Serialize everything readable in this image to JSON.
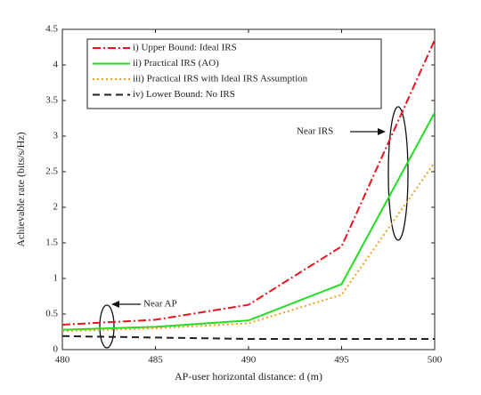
{
  "chart_data": {
    "type": "line",
    "xlabel": "AP-user horizontal distance: d (m)",
    "ylabel": "Achievable rate (bits/s/Hz)",
    "x": [
      480,
      485,
      490,
      495,
      500
    ],
    "series": [
      {
        "name": "i) Upper Bound: Ideal IRS",
        "color": "#e8141e",
        "dash": "9,3,2,3",
        "values": [
          0.35,
          0.42,
          0.63,
          1.45,
          4.35
        ]
      },
      {
        "name": "ii) Practical IRS (AO)",
        "color": "#22dd22",
        "dash": "none",
        "values": [
          0.28,
          0.32,
          0.41,
          0.92,
          3.33
        ]
      },
      {
        "name": "iii) Practical IRS with Ideal IRS Assumption",
        "color": "#f0a020",
        "dash": "2,3",
        "values": [
          0.26,
          0.3,
          0.37,
          0.77,
          2.63
        ]
      },
      {
        "name": "iv) Lower Bound: No IRS",
        "color": "#222222",
        "dash": "8,5",
        "values": [
          0.19,
          0.17,
          0.15,
          0.15,
          0.15
        ]
      }
    ],
    "xlim": [
      480,
      500
    ],
    "xticks": [
      480,
      485,
      490,
      495,
      500
    ],
    "ylim": [
      0,
      4.5
    ],
    "yticks": [
      0,
      0.5,
      1,
      1.5,
      2,
      2.5,
      3,
      3.5,
      4,
      4.5
    ],
    "legend": "upper-left",
    "annotations": [
      "Near IRS",
      "Near AP"
    ]
  }
}
